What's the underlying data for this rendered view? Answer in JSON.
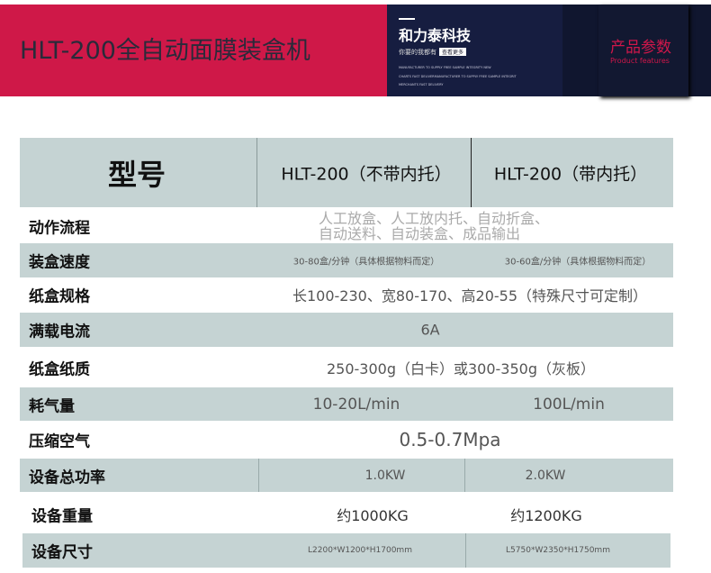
{
  "banner": {
    "title": "HLT-200全自动面膜装盒机",
    "brand": "和力泰科技",
    "slogan": "你要的我都有",
    "more_button": "查看更多",
    "tagline": [
      "MANUFACTURER TO SUPPLY FREE SAMPLE INTEGRITY NEW",
      "CHARTS FAST DELIVERMANUFACTURER TO SUPPLY FREE SAMPLE INTEGRIT",
      "MERCHANTS FAST DELIVERY"
    ],
    "features_cn": "产品参数",
    "features_en": "Product features",
    "accent": "#cf1848",
    "navy": "#161d40"
  },
  "table": {
    "header": {
      "label": "型号",
      "col1": "HLT-200（不带内托）",
      "col2": "HLT-200（带内托）"
    },
    "rows": [
      {
        "label": "动作流程",
        "line1": "人工放盒、人工放内托、自动折盒、",
        "line2": "自动送料、自动装盒、成品输出"
      },
      {
        "label": "装盒速度",
        "col1": "30-80盒/分钟（具体根据物料而定）",
        "col2": "30-60盒/分钟（具体根据物料而定）"
      },
      {
        "label": "纸盒规格",
        "value": "长100-230、宽80-170、高20-55（特殊尺寸可定制）"
      },
      {
        "label": "满载电流",
        "value": "6A"
      },
      {
        "label": "纸盒纸质",
        "value": "250-300g（白卡）或300-350g（灰板）"
      },
      {
        "label": "耗气量",
        "col1": "10-20L/min",
        "col2": "100L/min"
      },
      {
        "label": "压缩空气",
        "value": "0.5-0.7Mpa"
      },
      {
        "label": "设备总功率",
        "col1": "1.0KW",
        "col2": "2.0KW"
      },
      {
        "label": "设备重量",
        "col1": "约1000KG",
        "col2": "约1200KG"
      },
      {
        "label": "设备尺寸",
        "col1": "L2200*W1200*H1700mm",
        "col2": "L5750*W2350*H1750mm"
      }
    ]
  }
}
